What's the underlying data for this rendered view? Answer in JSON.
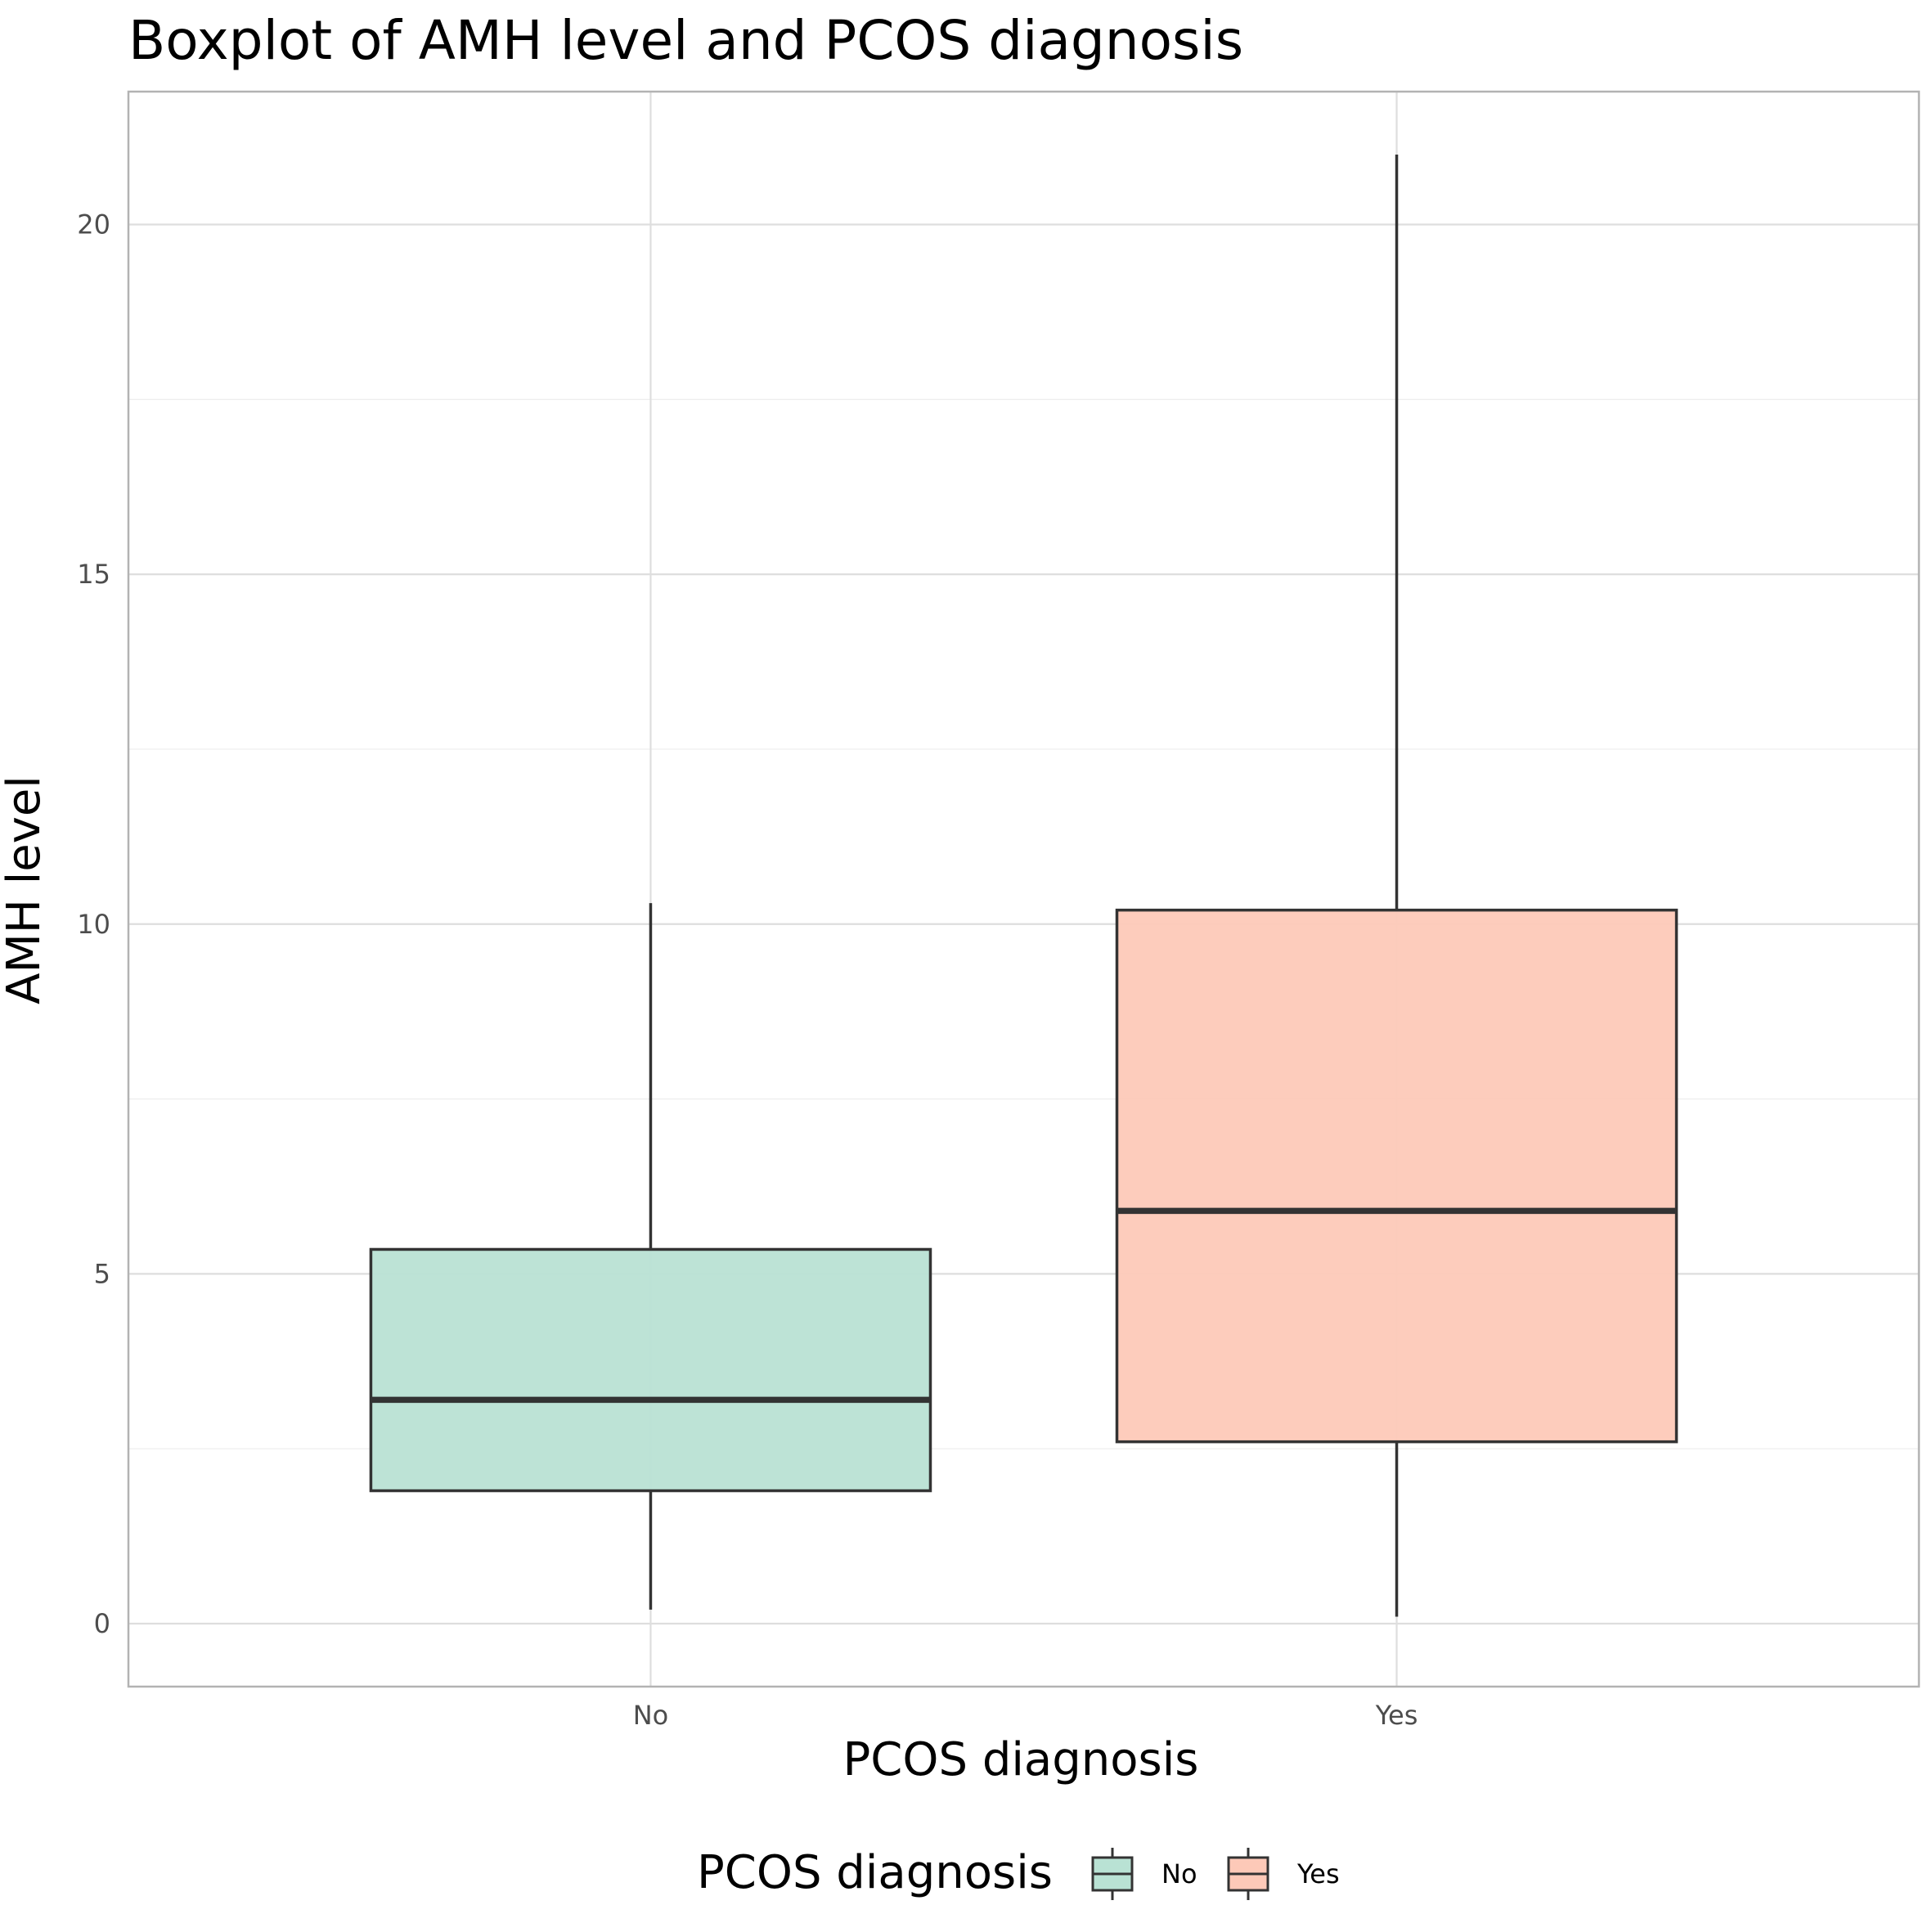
{
  "chart_data": {
    "type": "boxplot",
    "title": "Boxplot of AMH level and PCOS diagnosis",
    "xlabel": "PCOS diagnosis",
    "ylabel": "AMH level",
    "ylim": [
      -0.9,
      21.9
    ],
    "yticks": [
      0,
      5,
      10,
      15,
      20
    ],
    "categories": [
      "No",
      "Yes"
    ],
    "boxes": [
      {
        "category": "No",
        "min": 0.2,
        "q1": 1.9,
        "median": 3.2,
        "q3": 5.35,
        "max": 10.3,
        "color": "#b9e2d4"
      },
      {
        "category": "Yes",
        "min": 0.1,
        "q1": 2.6,
        "median": 5.9,
        "q3": 10.2,
        "max": 21.0,
        "color": "#fdc9b8"
      }
    ],
    "grid": true,
    "legend": {
      "title": "PCOS diagnosis",
      "position": "bottom",
      "entries": [
        "No",
        "Yes"
      ]
    }
  }
}
